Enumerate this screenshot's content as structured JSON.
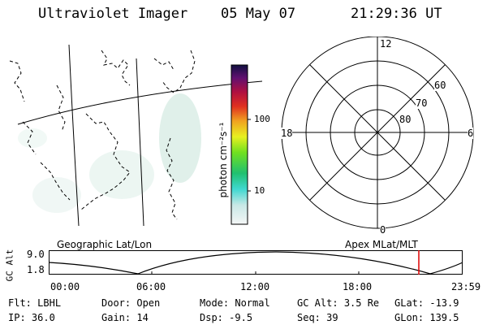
{
  "header": {
    "title": "Ultraviolet Imager",
    "date": "05 May 07",
    "time": "21:29:36 UT"
  },
  "colorbar": {
    "label": "photon cm⁻²s⁻¹",
    "ticks": [
      "100",
      "10"
    ]
  },
  "polar_plot": {
    "mlt_labels": [
      "12",
      "18",
      "6",
      "0"
    ],
    "lat_labels": [
      "60",
      "70",
      "80"
    ]
  },
  "map_caption": "Geographic Lat/Lon",
  "polar_caption": "Apex MLat/MLT",
  "altitude_plot": {
    "ylabel": "GC Alt",
    "yticks": [
      "9.0",
      "1.8"
    ],
    "xticks": [
      "00:00",
      "06:00",
      "12:00",
      "18:00",
      "23:59"
    ],
    "marker_color": "#dd0000"
  },
  "info": {
    "row1": [
      {
        "label": "Flt:",
        "value": "LBHL"
      },
      {
        "label": "Door:",
        "value": "Open"
      },
      {
        "label": "Mode:",
        "value": "Normal"
      },
      {
        "label": "GC Alt:",
        "value": "3.5 Re"
      },
      {
        "label": "GLat:",
        "value": "-13.9"
      }
    ],
    "row2": [
      {
        "label": "IP:",
        "value": "36.0"
      },
      {
        "label": "Gain:",
        "value": "14"
      },
      {
        "label": "Dsp:",
        "value": "-9.5"
      },
      {
        "label": "Seq:",
        "value": "39"
      },
      {
        "label": "GLon:",
        "value": "139.5"
      }
    ]
  }
}
